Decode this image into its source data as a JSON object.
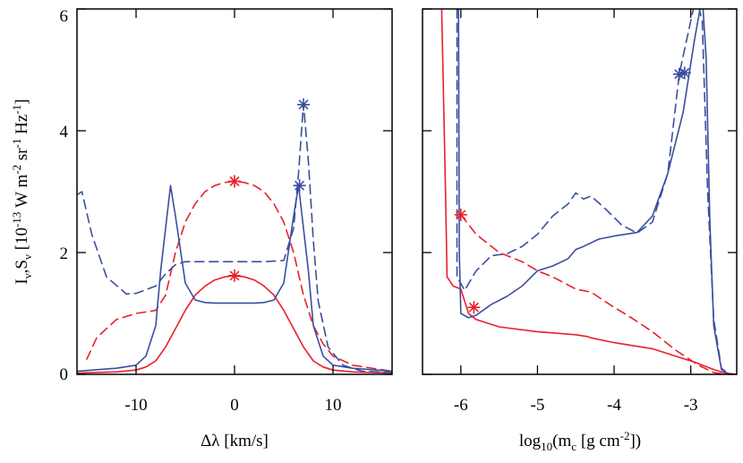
{
  "figure": {
    "y_axis_title": {
      "main": "I",
      "sub1": "ν",
      "mid": ",S",
      "sub2": "ν",
      "bracket_open": " [10",
      "exp1": "-13",
      "units_a": " W m",
      "exp2": "-2",
      "units_b": " sr",
      "exp3": "-1",
      "units_c": " Hz",
      "exp4": "-1",
      "bracket_close": "]"
    }
  },
  "chart_data": [
    {
      "type": "line",
      "panel": "left",
      "xlabel": "Δλ [km/s]",
      "xlim": [
        -16,
        16
      ],
      "ylim": [
        0,
        6
      ],
      "xticks": [
        -10,
        0,
        10
      ],
      "xtick_labels": [
        "-10",
        "0",
        "10"
      ],
      "yticks": [
        0,
        2,
        4,
        6
      ],
      "ytick_labels": [
        "0",
        "2",
        "4",
        "6"
      ],
      "series": [
        {
          "color": "#e8202a",
          "dash": "solid",
          "points": [
            [
              -16,
              0.02
            ],
            [
              -12,
              0.04
            ],
            [
              -10,
              0.07
            ],
            [
              -9,
              0.12
            ],
            [
              -8,
              0.22
            ],
            [
              -7,
              0.45
            ],
            [
              -6,
              0.75
            ],
            [
              -5,
              1.05
            ],
            [
              -4,
              1.3
            ],
            [
              -3,
              1.45
            ],
            [
              -2,
              1.55
            ],
            [
              -1,
              1.6
            ],
            [
              0,
              1.62
            ],
            [
              1,
              1.6
            ],
            [
              2,
              1.55
            ],
            [
              3,
              1.45
            ],
            [
              4,
              1.3
            ],
            [
              5,
              1.05
            ],
            [
              6,
              0.75
            ],
            [
              7,
              0.45
            ],
            [
              8,
              0.22
            ],
            [
              9,
              0.12
            ],
            [
              10,
              0.07
            ],
            [
              12,
              0.04
            ],
            [
              16,
              0.02
            ]
          ]
        },
        {
          "color": "#e8202a",
          "dash": "dashed",
          "points": [
            [
              -15,
              0.25
            ],
            [
              -14,
              0.6
            ],
            [
              -12,
              0.9
            ],
            [
              -10,
              1.0
            ],
            [
              -8,
              1.05
            ],
            [
              -7,
              1.3
            ],
            [
              -6,
              2.0
            ],
            [
              -5,
              2.5
            ],
            [
              -4,
              2.8
            ],
            [
              -3,
              3.0
            ],
            [
              -2,
              3.1
            ],
            [
              -1,
              3.15
            ],
            [
              0,
              3.17
            ],
            [
              1,
              3.15
            ],
            [
              2,
              3.1
            ],
            [
              3,
              3.0
            ],
            [
              4,
              2.8
            ],
            [
              5,
              2.5
            ],
            [
              6,
              2.0
            ],
            [
              7,
              1.3
            ],
            [
              8,
              0.8
            ],
            [
              9,
              0.5
            ],
            [
              10,
              0.3
            ],
            [
              12,
              0.15
            ],
            [
              16,
              0.05
            ]
          ]
        },
        {
          "color": "#3a4ea0",
          "dash": "solid",
          "points": [
            [
              -16,
              0.05
            ],
            [
              -12,
              0.1
            ],
            [
              -10,
              0.15
            ],
            [
              -9,
              0.3
            ],
            [
              -8,
              0.8
            ],
            [
              -7.5,
              1.7
            ],
            [
              -7,
              2.4
            ],
            [
              -6.5,
              3.1
            ],
            [
              -6,
              2.6
            ],
            [
              -5,
              1.5
            ],
            [
              -4,
              1.22
            ],
            [
              -3,
              1.18
            ],
            [
              -2,
              1.17
            ],
            [
              0,
              1.17
            ],
            [
              2,
              1.17
            ],
            [
              3,
              1.18
            ],
            [
              4,
              1.22
            ],
            [
              5,
              1.5
            ],
            [
              6,
              2.6
            ],
            [
              6.5,
              3.1
            ],
            [
              7,
              2.4
            ],
            [
              7.5,
              1.7
            ],
            [
              8,
              0.8
            ],
            [
              9,
              0.3
            ],
            [
              10,
              0.15
            ],
            [
              12,
              0.1
            ],
            [
              16,
              0.05
            ]
          ]
        },
        {
          "color": "#3a4ea0",
          "dash": "dashed",
          "points": [
            [
              -16,
              2.95
            ],
            [
              -15.5,
              3.0
            ],
            [
              -14.5,
              2.3
            ],
            [
              -13,
              1.6
            ],
            [
              -11,
              1.32
            ],
            [
              -10,
              1.33
            ],
            [
              -8,
              1.45
            ],
            [
              -7,
              1.65
            ],
            [
              -6,
              1.8
            ],
            [
              -5,
              1.85
            ],
            [
              -3,
              1.85
            ],
            [
              0,
              1.85
            ],
            [
              3,
              1.85
            ],
            [
              5,
              1.87
            ],
            [
              6,
              2.4
            ],
            [
              6.5,
              3.3
            ],
            [
              7,
              4.45
            ],
            [
              7.5,
              3.5
            ],
            [
              8,
              2.2
            ],
            [
              8.5,
              1.2
            ],
            [
              9.5,
              0.45
            ],
            [
              11,
              0.15
            ],
            [
              13,
              0.05
            ],
            [
              16,
              0.03
            ]
          ]
        }
      ],
      "markers": [
        {
          "x": 0,
          "y": 3.17,
          "color": "#e8202a"
        },
        {
          "x": 0,
          "y": 1.62,
          "color": "#e8202a"
        },
        {
          "x": 7,
          "y": 4.43,
          "color": "#3a4ea0"
        },
        {
          "x": 6.6,
          "y": 3.1,
          "color": "#3a4ea0"
        }
      ]
    },
    {
      "type": "line",
      "panel": "right",
      "xlabel": "log10(mc [g cm-2])",
      "xlabel_parts": {
        "a": "log",
        "b": "10",
        "c": "(m",
        "d": "c",
        "e": " [g cm",
        "f": "-2",
        "g": "])"
      },
      "xlim": [
        -6.5,
        -2.4
      ],
      "ylim": [
        0,
        6
      ],
      "xticks": [
        -6,
        -5,
        -4,
        -3
      ],
      "xtick_labels": [
        "-6",
        "-5",
        "-4",
        "-3"
      ],
      "yticks": [
        0,
        2,
        4,
        6
      ],
      "series": [
        {
          "color": "#e8202a",
          "dash": "solid",
          "points": [
            [
              -6.25,
              6.0
            ],
            [
              -6.2,
              3.0
            ],
            [
              -6.18,
              1.6
            ],
            [
              -6.1,
              1.45
            ],
            [
              -6.0,
              1.4
            ],
            [
              -5.95,
              1.2
            ],
            [
              -5.9,
              1.0
            ],
            [
              -5.8,
              0.9
            ],
            [
              -5.5,
              0.78
            ],
            [
              -5.0,
              0.7
            ],
            [
              -4.5,
              0.65
            ],
            [
              -4.35,
              0.62
            ],
            [
              -4.3,
              0.6
            ],
            [
              -4.0,
              0.52
            ],
            [
              -3.5,
              0.42
            ],
            [
              -3.2,
              0.3
            ],
            [
              -2.95,
              0.2
            ],
            [
              -2.7,
              0.08
            ],
            [
              -2.55,
              0.02
            ],
            [
              -2.4,
              0.0
            ]
          ]
        },
        {
          "color": "#e8202a",
          "dash": "dashed",
          "points": [
            [
              -6.0,
              2.62
            ],
            [
              -5.8,
              2.3
            ],
            [
              -5.5,
              2.0
            ],
            [
              -5.2,
              1.85
            ],
            [
              -5.0,
              1.7
            ],
            [
              -4.8,
              1.6
            ],
            [
              -4.5,
              1.4
            ],
            [
              -4.3,
              1.35
            ],
            [
              -4.0,
              1.1
            ],
            [
              -3.8,
              0.95
            ],
            [
              -3.5,
              0.7
            ],
            [
              -3.2,
              0.4
            ],
            [
              -2.9,
              0.15
            ],
            [
              -2.7,
              0.03
            ],
            [
              -2.55,
              0.0
            ]
          ]
        },
        {
          "color": "#3a4ea0",
          "dash": "solid",
          "points": [
            [
              -6.03,
              6.0
            ],
            [
              -6.02,
              2.0
            ],
            [
              -6.0,
              1.0
            ],
            [
              -5.9,
              0.93
            ],
            [
              -5.8,
              0.97
            ],
            [
              -5.6,
              1.15
            ],
            [
              -5.4,
              1.28
            ],
            [
              -5.2,
              1.45
            ],
            [
              -5.0,
              1.7
            ],
            [
              -4.8,
              1.78
            ],
            [
              -4.6,
              1.9
            ],
            [
              -4.5,
              2.05
            ],
            [
              -4.4,
              2.1
            ],
            [
              -4.2,
              2.22
            ],
            [
              -4.0,
              2.27
            ],
            [
              -3.7,
              2.33
            ],
            [
              -3.5,
              2.6
            ],
            [
              -3.3,
              3.3
            ],
            [
              -3.1,
              4.3
            ],
            [
              -2.95,
              5.5
            ],
            [
              -2.85,
              6.2
            ],
            [
              -2.8,
              5.2
            ],
            [
              -2.75,
              2.5
            ],
            [
              -2.7,
              0.8
            ],
            [
              -2.6,
              0.08
            ],
            [
              -2.5,
              0.0
            ]
          ]
        },
        {
          "color": "#3a4ea0",
          "dash": "dashed",
          "points": [
            [
              -6.05,
              6.0
            ],
            [
              -6.05,
              1.6
            ],
            [
              -5.95,
              1.38
            ],
            [
              -5.8,
              1.7
            ],
            [
              -5.6,
              1.95
            ],
            [
              -5.4,
              1.98
            ],
            [
              -5.2,
              2.1
            ],
            [
              -5.0,
              2.3
            ],
            [
              -4.8,
              2.6
            ],
            [
              -4.6,
              2.8
            ],
            [
              -4.5,
              2.98
            ],
            [
              -4.4,
              2.88
            ],
            [
              -4.3,
              2.93
            ],
            [
              -4.1,
              2.7
            ],
            [
              -3.9,
              2.45
            ],
            [
              -3.7,
              2.32
            ],
            [
              -3.5,
              2.5
            ],
            [
              -3.3,
              3.3
            ],
            [
              -3.15,
              4.93
            ],
            [
              -3.0,
              5.8
            ],
            [
              -2.93,
              6.2
            ],
            [
              -2.85,
              5.8
            ],
            [
              -2.78,
              3.0
            ],
            [
              -2.7,
              0.9
            ],
            [
              -2.6,
              0.1
            ],
            [
              -2.5,
              0.0
            ]
          ]
        }
      ],
      "markers": [
        {
          "x": -6.0,
          "y": 2.62,
          "color": "#e8202a"
        },
        {
          "x": -5.83,
          "y": 1.1,
          "color": "#e8202a"
        },
        {
          "x": -3.15,
          "y": 4.93,
          "color": "#3a4ea0"
        },
        {
          "x": -3.08,
          "y": 4.95,
          "color": "#3a4ea0"
        }
      ]
    }
  ]
}
